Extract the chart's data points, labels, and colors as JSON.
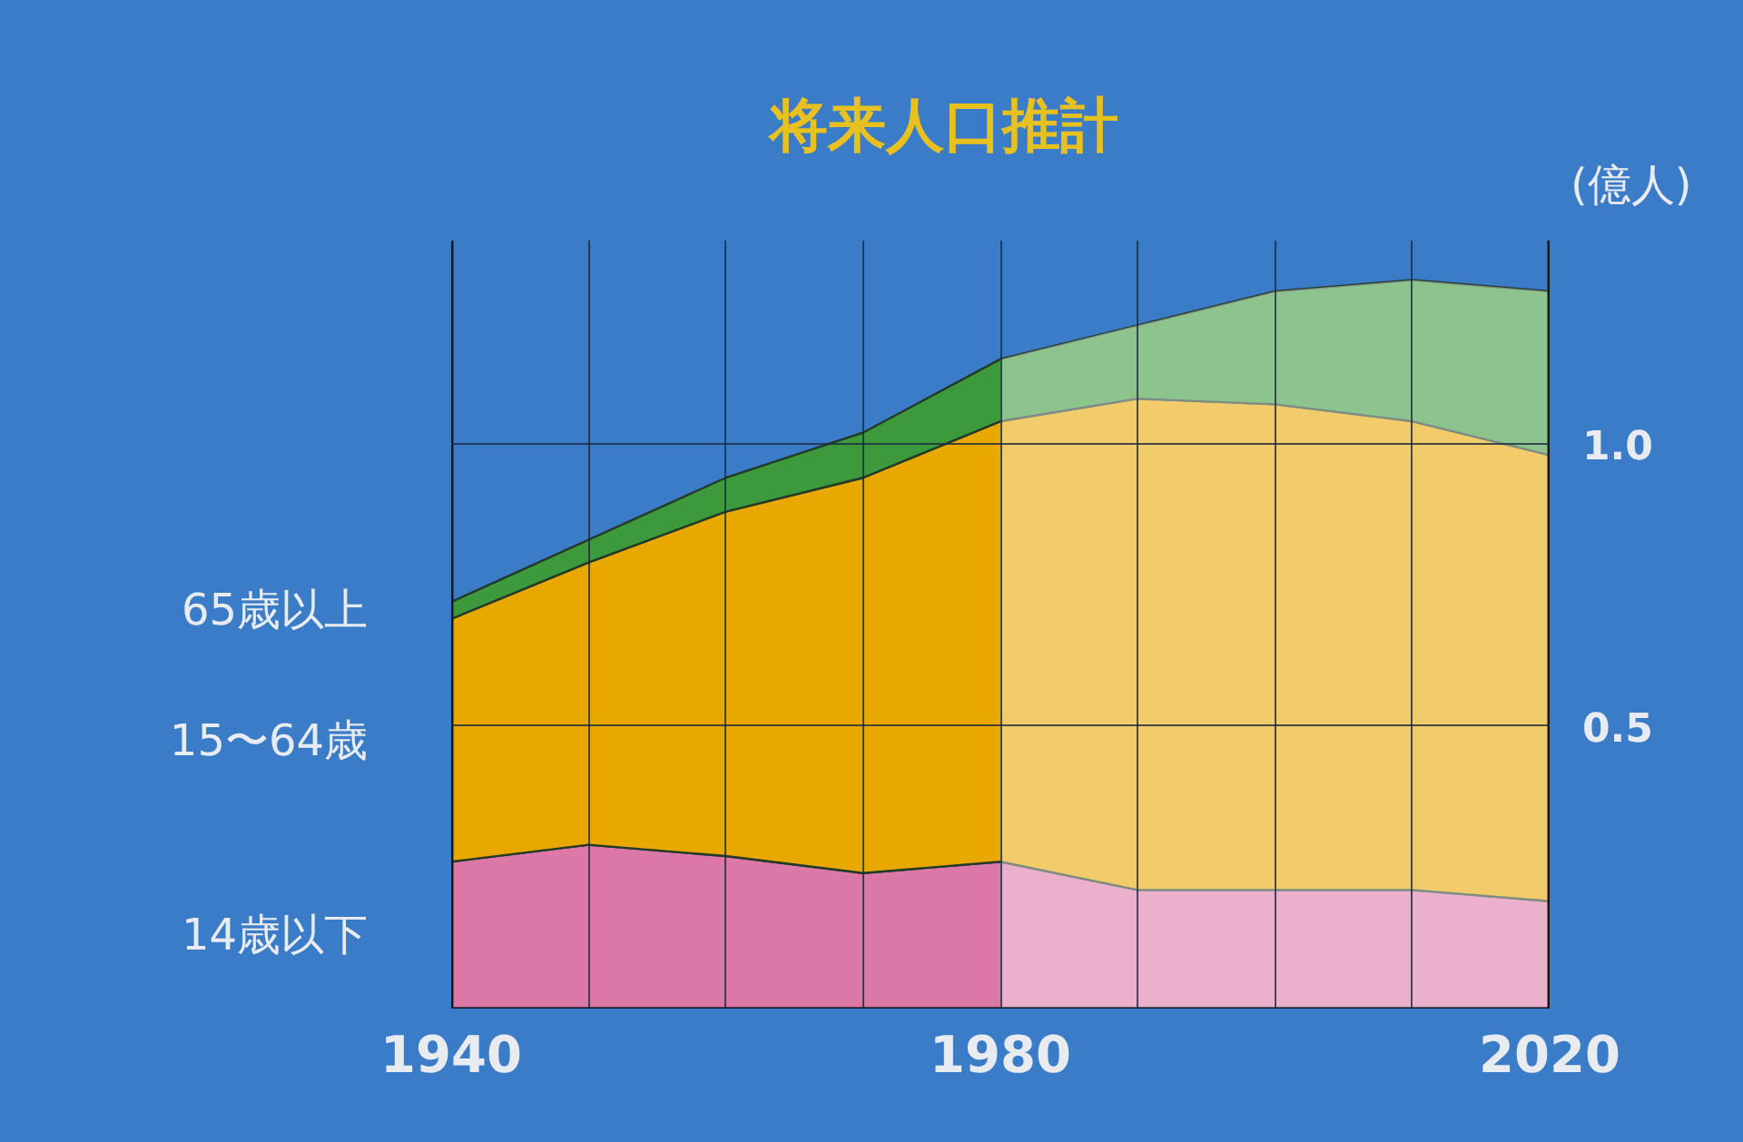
{
  "chart_data": {
    "type": "area",
    "title": "将来人口推計",
    "ylabel": "(億人)",
    "stacked": true,
    "grid": true,
    "marker": "none",
    "xlim": [
      1940,
      2020
    ],
    "ylim": [
      0,
      1.36
    ],
    "xticks": [
      1940,
      {
        "value": 1950,
        "label": null
      },
      {
        "value": 1960,
        "label": null
      },
      {
        "value": 1970,
        "label": null
      },
      1980,
      {
        "value": 1990,
        "label": null
      },
      {
        "value": 2000,
        "label": null
      },
      {
        "value": 2010,
        "label": null
      },
      2020
    ],
    "yticks": [
      {
        "value": 0.5,
        "label": "0.5"
      },
      {
        "value": 1.0,
        "label": "1.0"
      }
    ],
    "x": [
      1940,
      1950,
      1960,
      1970,
      1980,
      1990,
      2000,
      2010,
      2020
    ],
    "series": [
      {
        "name": "14歳以下",
        "color": "#dc78a8",
        "values": [
          0.26,
          0.29,
          0.27,
          0.24,
          0.26,
          0.21,
          0.21,
          0.21,
          0.19
        ]
      },
      {
        "name": "15〜64歳",
        "color": "#e8a800",
        "values": [
          0.43,
          0.5,
          0.61,
          0.7,
          0.78,
          0.87,
          0.86,
          0.83,
          0.79
        ]
      },
      {
        "name": "65歳以上",
        "color": "#3c9a3c",
        "values": [
          0.03,
          0.04,
          0.06,
          0.08,
          0.11,
          0.13,
          0.2,
          0.25,
          0.29
        ]
      }
    ],
    "bands": [
      {
        "axis": "x",
        "from": 1980,
        "to": 2020,
        "color": "#ffffff"
      }
    ]
  }
}
